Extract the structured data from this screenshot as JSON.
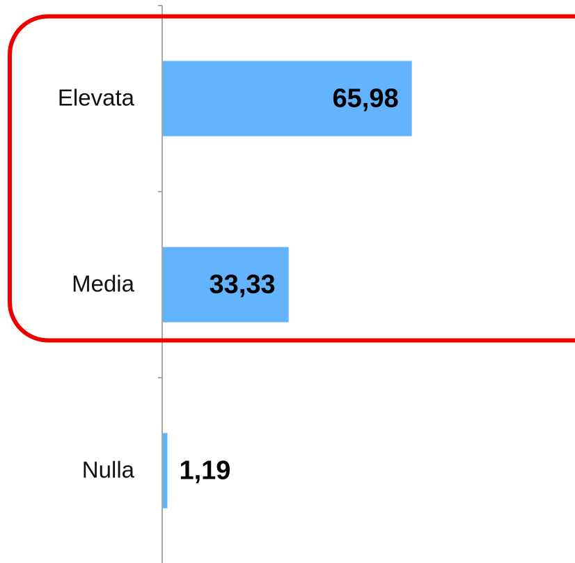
{
  "chart_data": {
    "type": "bar",
    "orientation": "horizontal",
    "categories": [
      "Elevata",
      "Media",
      "Nulla"
    ],
    "values": [
      65.98,
      33.33,
      1.19
    ],
    "value_labels": [
      "65,98",
      "33,33",
      "1,19"
    ],
    "title": "",
    "xlabel": "",
    "ylabel": "",
    "xlim": [
      0,
      100
    ],
    "grid": false,
    "legend": "none",
    "bar_color": "#63b3fd",
    "highlight": {
      "categories": [
        "Elevata",
        "Media"
      ],
      "color": "#ee0000",
      "shape": "rounded-rectangle"
    }
  }
}
